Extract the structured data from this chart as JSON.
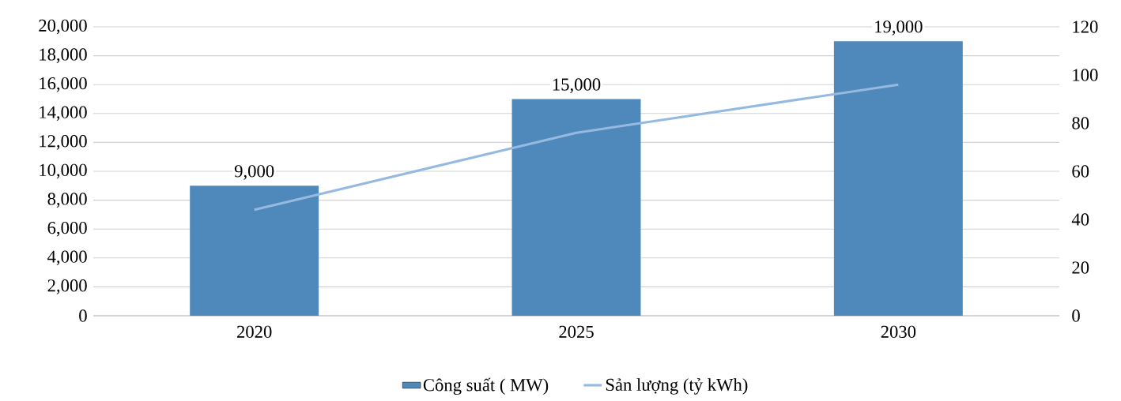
{
  "chart_data": {
    "type": "bar",
    "categories": [
      "2020",
      "2025",
      "2030"
    ],
    "series": [
      {
        "name": "Công suất ( MW)",
        "color": "#4f88bb",
        "values": [
          9000,
          15000,
          19000
        ],
        "value_labels": [
          "9,000",
          "15,000",
          "19,000"
        ]
      },
      {
        "name": "Sản lượng (tỷ kWh)",
        "type": "line",
        "axis": "y2",
        "color": "#95b9e0",
        "values": [
          44,
          76,
          96
        ]
      }
    ],
    "ylim": [
      0,
      20000
    ],
    "yticks": [
      0,
      {
        "value": 2000,
        "label": "2,000"
      },
      {
        "value": 4000,
        "label": "4,000"
      },
      {
        "value": 6000,
        "label": "6,000"
      },
      {
        "value": 8000,
        "label": "8,000"
      },
      {
        "value": 10000,
        "label": "10,000"
      },
      {
        "value": 12000,
        "label": "12,000"
      },
      {
        "value": 14000,
        "label": "14,000"
      },
      {
        "value": 16000,
        "label": "16,000"
      },
      {
        "value": 18000,
        "label": "18,000"
      },
      {
        "value": 20000,
        "label": "20,000"
      }
    ],
    "y2lim": [
      0,
      120
    ],
    "y2ticks": [
      0,
      20,
      40,
      60,
      80,
      100,
      120
    ],
    "grid": "y",
    "legend": "bottom",
    "marker": "none"
  }
}
